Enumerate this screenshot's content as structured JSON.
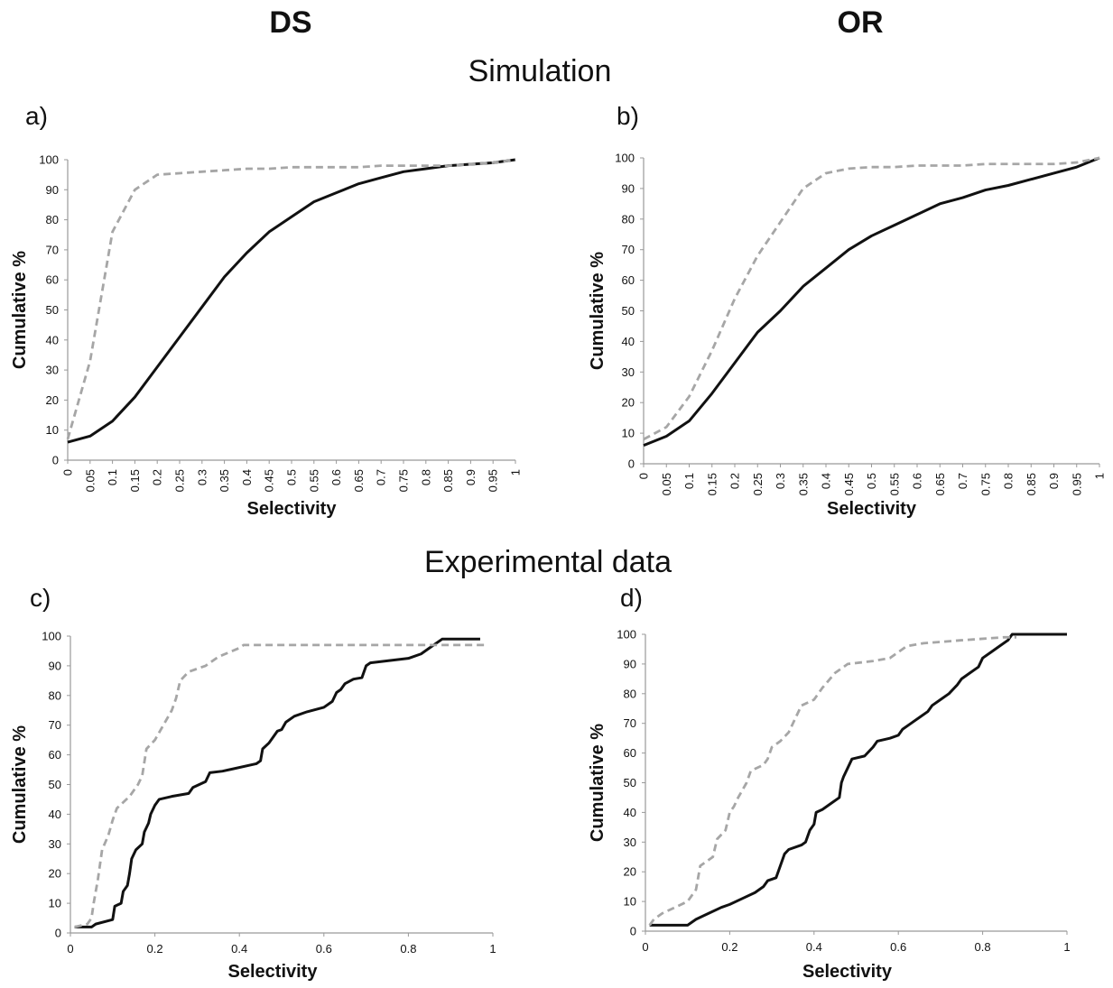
{
  "column_titles": [
    "DS",
    "OR"
  ],
  "section_titles": [
    "Simulation",
    "Experimental data"
  ],
  "chart_data": [
    {
      "type": "line",
      "panel_label": "a)",
      "xlabel": "Selectivity",
      "ylabel": "Cumulative %",
      "xlim": [
        0,
        1
      ],
      "ylim": [
        0,
        100
      ],
      "xtick_labels_rotated": true,
      "xticks": [
        0,
        0.05,
        0.1,
        0.15,
        0.2,
        0.25,
        0.3,
        0.35,
        0.4,
        0.45,
        0.5,
        0.55,
        0.6,
        0.65,
        0.7,
        0.75,
        0.8,
        0.85,
        0.9,
        0.95,
        1
      ],
      "yticks": [
        0,
        10,
        20,
        30,
        40,
        50,
        60,
        70,
        80,
        90,
        100
      ],
      "series": [
        {
          "color": "#111111",
          "style": "solid",
          "x": [
            0,
            0.05,
            0.1,
            0.15,
            0.2,
            0.25,
            0.3,
            0.35,
            0.4,
            0.45,
            0.5,
            0.55,
            0.6,
            0.65,
            0.7,
            0.75,
            0.8,
            0.85,
            0.9,
            0.95,
            1
          ],
          "values": [
            6,
            8,
            13,
            21,
            31,
            41,
            51,
            61,
            69,
            76,
            81,
            86,
            89,
            92,
            94,
            96,
            97,
            98,
            98.5,
            99,
            100
          ]
        },
        {
          "color": "#a6a6a6",
          "style": "dashed",
          "x": [
            0,
            0.05,
            0.1,
            0.15,
            0.2,
            0.25,
            0.3,
            0.35,
            0.4,
            0.45,
            0.5,
            0.55,
            0.6,
            0.65,
            0.7,
            0.75,
            0.8,
            0.85,
            0.9,
            0.95,
            1
          ],
          "values": [
            7,
            33,
            76,
            90,
            95,
            95.5,
            96,
            96.5,
            97,
            97,
            97.5,
            97.5,
            97.5,
            97.5,
            98,
            98,
            98,
            98,
            98.5,
            99,
            100
          ]
        }
      ]
    },
    {
      "type": "line",
      "panel_label": "b)",
      "xlabel": "Selectivity",
      "ylabel": "Cumulative %",
      "xlim": [
        0,
        1
      ],
      "ylim": [
        0,
        100
      ],
      "xtick_labels_rotated": true,
      "xticks": [
        0,
        0.05,
        0.1,
        0.15,
        0.2,
        0.25,
        0.3,
        0.35,
        0.4,
        0.45,
        0.5,
        0.55,
        0.6,
        0.65,
        0.7,
        0.75,
        0.8,
        0.85,
        0.9,
        0.95,
        1
      ],
      "yticks": [
        0,
        10,
        20,
        30,
        40,
        50,
        60,
        70,
        80,
        90,
        100
      ],
      "series": [
        {
          "color": "#111111",
          "style": "solid",
          "x": [
            0,
            0.05,
            0.1,
            0.15,
            0.2,
            0.25,
            0.3,
            0.35,
            0.4,
            0.45,
            0.5,
            0.55,
            0.6,
            0.65,
            0.7,
            0.75,
            0.8,
            0.85,
            0.9,
            0.95,
            1
          ],
          "values": [
            6,
            9,
            14,
            23,
            33,
            43,
            50,
            58,
            64,
            70,
            74.5,
            78,
            81.5,
            85,
            87,
            89.5,
            91,
            93,
            95,
            97,
            100
          ]
        },
        {
          "color": "#a6a6a6",
          "style": "dashed",
          "x": [
            0,
            0.05,
            0.1,
            0.15,
            0.2,
            0.25,
            0.3,
            0.35,
            0.4,
            0.45,
            0.5,
            0.55,
            0.6,
            0.65,
            0.7,
            0.75,
            0.8,
            0.85,
            0.9,
            0.95,
            1
          ],
          "values": [
            8,
            12,
            22,
            37,
            54,
            68,
            79,
            90,
            95,
            96.5,
            97,
            97,
            97.5,
            97.5,
            97.5,
            98,
            98,
            98,
            98,
            98.5,
            100
          ]
        }
      ]
    },
    {
      "type": "line",
      "panel_label": "c)",
      "xlabel": "Selectivity",
      "ylabel": "Cumulative %",
      "xlim": [
        0,
        1
      ],
      "ylim": [
        0,
        100
      ],
      "xtick_labels_rotated": false,
      "xticks": [
        0,
        0.2,
        0.4,
        0.6,
        0.8,
        1
      ],
      "yticks": [
        0,
        10,
        20,
        30,
        40,
        50,
        60,
        70,
        80,
        90,
        100
      ],
      "series": [
        {
          "color": "#111111",
          "style": "solid",
          "x": [
            0.01,
            0.05,
            0.06,
            0.1,
            0.105,
            0.12,
            0.125,
            0.135,
            0.14,
            0.145,
            0.155,
            0.17,
            0.175,
            0.185,
            0.19,
            0.2,
            0.21,
            0.24,
            0.28,
            0.29,
            0.32,
            0.33,
            0.36,
            0.44,
            0.45,
            0.455,
            0.47,
            0.48,
            0.49,
            0.5,
            0.51,
            0.53,
            0.56,
            0.6,
            0.62,
            0.63,
            0.64,
            0.65,
            0.67,
            0.69,
            0.7,
            0.71,
            0.8,
            0.83,
            0.85,
            0.87,
            0.88,
            0.97
          ],
          "values": [
            2,
            2,
            3,
            4.5,
            9,
            10,
            14,
            16,
            20,
            25,
            28,
            30,
            34,
            37,
            40,
            43,
            45,
            46,
            47,
            49,
            51,
            54,
            54.5,
            57,
            58,
            62,
            64,
            66,
            68,
            68.5,
            71,
            73,
            74.5,
            76,
            78,
            81,
            82,
            84,
            85.5,
            86,
            90,
            91,
            92.5,
            94,
            96,
            98,
            99,
            99
          ]
        },
        {
          "color": "#a6a6a6",
          "style": "dashed",
          "x": [
            0.01,
            0.04,
            0.05,
            0.055,
            0.065,
            0.075,
            0.09,
            0.1,
            0.11,
            0.14,
            0.16,
            0.17,
            0.18,
            0.2,
            0.22,
            0.24,
            0.25,
            0.26,
            0.28,
            0.32,
            0.35,
            0.4,
            0.41,
            0.8,
            0.98
          ],
          "values": [
            2,
            3,
            5,
            10,
            18,
            28,
            33,
            38,
            42,
            46,
            50,
            53,
            62,
            65,
            70,
            75,
            79,
            85,
            88,
            90,
            93,
            96,
            97,
            97,
            97
          ]
        }
      ]
    },
    {
      "type": "line",
      "panel_label": "d)",
      "xlabel": "Selectivity",
      "ylabel": "Cumulative %",
      "xlim": [
        0,
        1
      ],
      "ylim": [
        0,
        100
      ],
      "xtick_labels_rotated": false,
      "xticks": [
        0,
        0.2,
        0.4,
        0.6,
        0.8,
        1
      ],
      "yticks": [
        0,
        10,
        20,
        30,
        40,
        50,
        60,
        70,
        80,
        90,
        100
      ],
      "series": [
        {
          "color": "#111111",
          "style": "solid",
          "x": [
            0.01,
            0.1,
            0.12,
            0.15,
            0.18,
            0.2,
            0.23,
            0.26,
            0.28,
            0.29,
            0.31,
            0.32,
            0.33,
            0.34,
            0.37,
            0.38,
            0.39,
            0.4,
            0.405,
            0.42,
            0.44,
            0.46,
            0.465,
            0.47,
            0.48,
            0.49,
            0.52,
            0.54,
            0.55,
            0.58,
            0.6,
            0.61,
            0.63,
            0.65,
            0.67,
            0.68,
            0.7,
            0.72,
            0.74,
            0.75,
            0.77,
            0.79,
            0.8,
            0.82,
            0.84,
            0.86,
            0.87,
            1
          ],
          "values": [
            2,
            2,
            4,
            6,
            8,
            9,
            11,
            13,
            15,
            17,
            18,
            22,
            26,
            27.5,
            29,
            30,
            34,
            36,
            40,
            41,
            43,
            45,
            50,
            52,
            55,
            58,
            59,
            62,
            64,
            65,
            66,
            68,
            70,
            72,
            74,
            76,
            78,
            80,
            83,
            85,
            87,
            89,
            92,
            94,
            96,
            98,
            100,
            100
          ]
        },
        {
          "color": "#a6a6a6",
          "style": "dashed",
          "x": [
            0.01,
            0.02,
            0.04,
            0.07,
            0.1,
            0.12,
            0.13,
            0.16,
            0.17,
            0.19,
            0.2,
            0.21,
            0.22,
            0.24,
            0.25,
            0.28,
            0.29,
            0.3,
            0.32,
            0.34,
            0.35,
            0.37,
            0.4,
            0.42,
            0.45,
            0.48,
            0.54,
            0.58,
            0.6,
            0.62,
            0.66,
            0.75,
            0.85,
            0.88
          ],
          "values": [
            2,
            4,
            6,
            8,
            10,
            14,
            22,
            25,
            31,
            34,
            40,
            42,
            45,
            50,
            54,
            56,
            58,
            62,
            64,
            67,
            70,
            76,
            78,
            82,
            87,
            90,
            91,
            92,
            94,
            96,
            97,
            98,
            99,
            99
          ]
        }
      ]
    }
  ]
}
